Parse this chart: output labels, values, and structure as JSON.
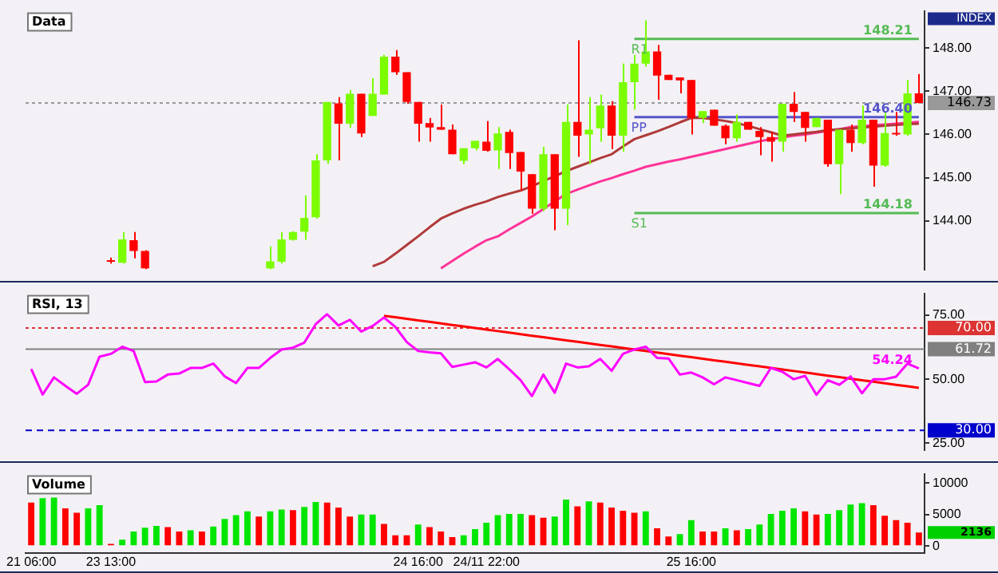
{
  "chart_data": [
    {
      "type": "candlestick",
      "title": "Data",
      "annotations": [
        "INDEX"
      ],
      "tick_labels": "y",
      "categories": [
        null,
        null,
        null,
        null,
        null,
        null,
        null,
        null,
        null,
        null,
        null,
        null,
        null,
        null,
        null,
        null,
        null,
        null,
        null,
        null,
        null,
        null,
        null,
        null,
        null,
        null,
        null,
        null,
        null,
        null,
        null,
        null,
        null,
        null,
        null,
        null,
        null,
        null,
        null,
        null,
        null,
        null,
        null,
        null,
        null,
        null,
        null,
        null,
        null,
        null,
        null,
        null,
        null,
        null,
        null,
        null,
        null,
        null,
        null,
        null,
        null,
        null,
        null,
        null,
        null,
        null,
        null,
        null,
        null,
        null,
        null,
        null,
        null,
        null,
        null,
        null,
        null,
        null,
        null
      ],
      "ohlc": [
        null,
        null,
        null,
        null,
        null,
        null,
        null,
        [
          143.07,
          143.15,
          143.01,
          143.05
        ],
        [
          143.03,
          143.74,
          143.01,
          143.57
        ],
        [
          143.55,
          143.74,
          143.13,
          143.3
        ],
        [
          143.3,
          143.32,
          142.88,
          142.9
        ],
        null,
        null,
        null,
        null,
        null,
        null,
        null,
        null,
        null,
        null,
        [
          142.9,
          143.41,
          142.88,
          143.06
        ],
        [
          143.05,
          143.74,
          143.01,
          143.57
        ],
        [
          143.56,
          143.76,
          143.54,
          143.74
        ],
        [
          143.75,
          144.59,
          143.56,
          144.07
        ],
        [
          144.08,
          145.54,
          144.05,
          145.4
        ],
        [
          145.4,
          146.75,
          145.32,
          146.75
        ],
        [
          146.72,
          146.86,
          145.4,
          146.25
        ],
        [
          146.25,
          147.03,
          146.15,
          146.94
        ],
        [
          146.94,
          146.94,
          145.94,
          146.02
        ],
        [
          146.43,
          147.3,
          146.43,
          146.94
        ],
        [
          146.92,
          147.84,
          146.92,
          147.8
        ],
        [
          147.8,
          147.95,
          147.38,
          147.44
        ],
        [
          147.44,
          147.44,
          146.71,
          146.75
        ],
        [
          146.75,
          146.75,
          145.83,
          146.25
        ],
        [
          146.26,
          146.38,
          145.83,
          146.16
        ],
        [
          146.17,
          146.69,
          146.11,
          146.11
        ],
        [
          146.11,
          146.23,
          145.54,
          145.54
        ],
        [
          145.39,
          145.68,
          145.31,
          145.68
        ],
        [
          145.68,
          145.85,
          145.63,
          145.85
        ],
        [
          145.83,
          146.31,
          145.6,
          145.62
        ],
        [
          145.63,
          146.17,
          145.2,
          146.02
        ],
        [
          146.06,
          146.11,
          145.2,
          145.57
        ],
        [
          145.59,
          145.59,
          144.7,
          145.14
        ],
        [
          145.08,
          145.08,
          144.16,
          144.28
        ],
        [
          144.28,
          145.71,
          144.22,
          145.54
        ],
        [
          145.54,
          145.54,
          143.78,
          144.28
        ],
        [
          144.28,
          146.69,
          143.9,
          146.29
        ],
        [
          146.29,
          148.18,
          145.48,
          145.97
        ],
        [
          146.0,
          146.86,
          145.31,
          146.11
        ],
        [
          146.14,
          146.92,
          145.83,
          146.67
        ],
        [
          146.67,
          146.77,
          145.66,
          145.97
        ],
        [
          145.97,
          147.64,
          145.6,
          147.21
        ],
        [
          147.21,
          147.84,
          146.57,
          147.64
        ],
        [
          147.64,
          148.64,
          147.57,
          147.92
        ],
        [
          147.92,
          148.07,
          146.8,
          147.36
        ],
        [
          147.38,
          147.38,
          147.26,
          147.26
        ],
        [
          147.32,
          147.32,
          146.95,
          147.25
        ],
        [
          147.26,
          147.26,
          146.0,
          146.38
        ],
        [
          146.38,
          146.54,
          146.26,
          146.54
        ],
        [
          146.57,
          146.57,
          146.2,
          146.2
        ],
        [
          146.2,
          146.23,
          145.77,
          145.91
        ],
        [
          145.91,
          146.46,
          145.83,
          146.29
        ],
        [
          146.29,
          146.29,
          146.11,
          146.11
        ],
        [
          146.08,
          146.17,
          145.52,
          145.94
        ],
        [
          145.94,
          146.06,
          145.37,
          145.83
        ],
        [
          145.83,
          146.71,
          145.6,
          146.71
        ],
        [
          146.71,
          146.98,
          146.29,
          146.52
        ],
        [
          146.52,
          146.52,
          145.83,
          146.15
        ],
        [
          146.17,
          146.38,
          146.17,
          146.38
        ],
        [
          146.34,
          146.34,
          145.25,
          145.31
        ],
        [
          145.31,
          146.11,
          144.62,
          146.11
        ],
        [
          146.11,
          146.23,
          145.6,
          145.8
        ],
        [
          145.8,
          146.67,
          145.77,
          146.34
        ],
        [
          146.34,
          146.34,
          144.79,
          145.28
        ],
        [
          145.28,
          146.52,
          145.25,
          146.03
        ],
        [
          146.02,
          146.52,
          145.97,
          146.0
        ],
        [
          146.0,
          147.26,
          145.97,
          146.95
        ],
        [
          146.95,
          147.4,
          146.72,
          146.73
        ]
      ],
      "colors": [
        null,
        null,
        null,
        null,
        null,
        null,
        null,
        "#ff0000",
        "#7cfc00",
        "#ff0000",
        "#ff0000",
        null,
        null,
        null,
        null,
        null,
        null,
        null,
        null,
        null,
        null,
        "#7cfc00",
        "#7cfc00",
        "#7cfc00",
        "#7cfc00",
        "#7cfc00",
        "#7cfc00",
        "#ff0000",
        "#7cfc00",
        "#ff0000",
        "#7cfc00",
        "#7cfc00",
        "#ff0000",
        "#ff0000",
        "#ff0000",
        "#ff0000",
        "#ff0000",
        "#ff0000",
        "#7cfc00",
        "#7cfc00",
        "#ff0000",
        "#7cfc00",
        "#ff0000",
        "#ff0000",
        "#ff0000",
        "#7cfc00",
        "#ff0000",
        "#7cfc00",
        "#ff0000",
        "#7cfc00",
        "#7cfc00",
        "#ff0000",
        "#7cfc00",
        "#7cfc00",
        "#7cfc00",
        "#ff0000",
        "#ff0000",
        "#ff0000",
        "#ff0000",
        "#7cfc00",
        "#ff0000",
        "#ff0000",
        "#7cfc00",
        "#ff0000",
        "#ff0000",
        "#ff0000",
        "#7cfc00",
        "#ff0000",
        "#ff0000",
        "#7cfc00",
        "#ff0000",
        "#7cfc00",
        "#ff0000",
        "#7cfc00",
        "#ff0000",
        "#7cfc00",
        "#ff0000",
        "#7cfc00",
        "#ff0000"
      ],
      "series": [
        {
          "type": "line",
          "color": "#b03a3a",
          "values": [
            null,
            null,
            null,
            null,
            null,
            null,
            null,
            null,
            null,
            null,
            null,
            null,
            null,
            null,
            null,
            null,
            null,
            null,
            null,
            null,
            null,
            null,
            null,
            null,
            null,
            null,
            null,
            null,
            null,
            null,
            142.95,
            143.05,
            143.24,
            143.44,
            143.64,
            143.85,
            144.05,
            144.17,
            144.28,
            144.37,
            144.45,
            144.55,
            144.63,
            144.7,
            144.8,
            144.92,
            145.03,
            145.15,
            145.25,
            145.35,
            145.45,
            145.54,
            145.72,
            145.89,
            145.98,
            146.07,
            146.17,
            146.28,
            146.38,
            146.38,
            146.35,
            146.31,
            146.26,
            146.2,
            146.12,
            146.05,
            145.97,
            146.0,
            146.03,
            146.06,
            146.1,
            146.12,
            146.14,
            146.16,
            146.18,
            146.2,
            146.22,
            146.24,
            146.25
          ]
        },
        {
          "type": "line",
          "color": "#ff3399",
          "values": [
            null,
            null,
            null,
            null,
            null,
            null,
            null,
            null,
            null,
            null,
            null,
            null,
            null,
            null,
            null,
            null,
            null,
            null,
            null,
            null,
            null,
            null,
            null,
            null,
            null,
            null,
            null,
            null,
            null,
            null,
            null,
            null,
            null,
            null,
            null,
            null,
            142.9,
            143.07,
            143.24,
            143.4,
            143.55,
            143.64,
            143.8,
            143.95,
            144.1,
            144.27,
            144.45,
            144.62,
            144.72,
            144.82,
            144.91,
            144.99,
            145.08,
            145.16,
            145.25,
            145.31,
            145.37,
            145.42,
            145.48,
            145.54,
            145.6,
            145.66,
            145.72,
            145.78,
            145.84,
            145.89,
            145.93,
            145.97,
            146.0,
            146.04,
            146.08,
            146.12,
            146.17,
            146.19,
            146.21,
            146.23,
            146.25,
            146.27,
            146.29
          ]
        },
        {
          "type": "line",
          "name": "R1",
          "color": "#55bb55",
          "values": [
            null,
            null,
            null,
            null,
            null,
            null,
            null,
            null,
            null,
            null,
            null,
            null,
            null,
            null,
            null,
            null,
            null,
            null,
            null,
            null,
            null,
            null,
            null,
            null,
            null,
            null,
            null,
            null,
            null,
            null,
            null,
            null,
            null,
            null,
            null,
            null,
            null,
            null,
            null,
            null,
            null,
            null,
            null,
            null,
            null,
            null,
            null,
            null,
            null,
            null,
            null,
            null,
            null,
            148.21,
            148.21,
            148.21,
            148.21,
            148.21,
            148.21,
            148.21,
            148.21,
            148.21,
            148.21,
            148.21,
            148.21,
            148.21,
            148.21,
            148.21,
            148.21,
            148.21,
            148.21,
            148.21,
            148.21,
            148.21,
            148.21,
            148.21,
            148.21,
            148.21,
            148.21
          ],
          "value_labels": [
            null,
            null,
            null,
            null,
            null,
            null,
            null,
            null,
            null,
            null,
            null,
            null,
            null,
            null,
            null,
            null,
            null,
            null,
            null,
            null,
            null,
            null,
            null,
            null,
            null,
            null,
            null,
            null,
            null,
            null,
            null,
            null,
            null,
            null,
            null,
            null,
            null,
            null,
            null,
            null,
            null,
            null,
            null,
            null,
            null,
            null,
            null,
            null,
            null,
            null,
            null,
            null,
            null,
            null,
            null,
            null,
            null,
            null,
            null,
            null,
            null,
            null,
            null,
            null,
            null,
            null,
            null,
            null,
            null,
            null,
            null,
            null,
            null,
            null,
            null,
            null,
            null,
            null,
            "148.21"
          ]
        },
        {
          "type": "line",
          "name": "PP",
          "color": "#5555cc",
          "values": [
            null,
            null,
            null,
            null,
            null,
            null,
            null,
            null,
            null,
            null,
            null,
            null,
            null,
            null,
            null,
            null,
            null,
            null,
            null,
            null,
            null,
            null,
            null,
            null,
            null,
            null,
            null,
            null,
            null,
            null,
            null,
            null,
            null,
            null,
            null,
            null,
            null,
            null,
            null,
            null,
            null,
            null,
            null,
            null,
            null,
            null,
            null,
            null,
            null,
            null,
            null,
            null,
            null,
            146.4,
            146.4,
            146.4,
            146.4,
            146.4,
            146.4,
            146.4,
            146.4,
            146.4,
            146.4,
            146.4,
            146.4,
            146.4,
            146.4,
            146.4,
            146.4,
            146.4,
            146.4,
            146.4,
            146.4,
            146.4,
            146.4,
            146.4,
            146.4,
            146.4,
            146.4
          ],
          "value_labels": [
            null,
            null,
            null,
            null,
            null,
            null,
            null,
            null,
            null,
            null,
            null,
            null,
            null,
            null,
            null,
            null,
            null,
            null,
            null,
            null,
            null,
            null,
            null,
            null,
            null,
            null,
            null,
            null,
            null,
            null,
            null,
            null,
            null,
            null,
            null,
            null,
            null,
            null,
            null,
            null,
            null,
            null,
            null,
            null,
            null,
            null,
            null,
            null,
            null,
            null,
            null,
            null,
            null,
            null,
            null,
            null,
            null,
            null,
            null,
            null,
            null,
            null,
            null,
            null,
            null,
            null,
            null,
            null,
            null,
            null,
            null,
            null,
            null,
            null,
            null,
            null,
            null,
            null,
            "146.40"
          ]
        },
        {
          "type": "line",
          "name": "S1",
          "color": "#55bb55",
          "values": [
            null,
            null,
            null,
            null,
            null,
            null,
            null,
            null,
            null,
            null,
            null,
            null,
            null,
            null,
            null,
            null,
            null,
            null,
            null,
            null,
            null,
            null,
            null,
            null,
            null,
            null,
            null,
            null,
            null,
            null,
            null,
            null,
            null,
            null,
            null,
            null,
            null,
            null,
            null,
            null,
            null,
            null,
            null,
            null,
            null,
            null,
            null,
            null,
            null,
            null,
            null,
            null,
            null,
            144.18,
            144.18,
            144.18,
            144.18,
            144.18,
            144.18,
            144.18,
            144.18,
            144.18,
            144.18,
            144.18,
            144.18,
            144.18,
            144.18,
            144.18,
            144.18,
            144.18,
            144.18,
            144.18,
            144.18,
            144.18,
            144.18,
            144.18,
            144.18,
            144.18,
            144.18
          ],
          "value_labels": [
            null,
            null,
            null,
            null,
            null,
            null,
            null,
            null,
            null,
            null,
            null,
            null,
            null,
            null,
            null,
            null,
            null,
            null,
            null,
            null,
            null,
            null,
            null,
            null,
            null,
            null,
            null,
            null,
            null,
            null,
            null,
            null,
            null,
            null,
            null,
            null,
            null,
            null,
            null,
            null,
            null,
            null,
            null,
            null,
            null,
            null,
            null,
            null,
            null,
            null,
            null,
            null,
            null,
            null,
            null,
            null,
            null,
            null,
            null,
            null,
            null,
            null,
            null,
            null,
            null,
            null,
            null,
            null,
            null,
            null,
            null,
            null,
            null,
            null,
            null,
            null,
            null,
            null,
            "144.18"
          ]
        }
      ],
      "ylim": [
        142.86,
        148.86
      ],
      "yticks": [
        {
          "value": 144,
          "label": "144.00"
        },
        {
          "value": 145,
          "label": "145.00"
        },
        {
          "value": 146,
          "label": "146.00"
        },
        {
          "value": 147,
          "label": "147.00"
        },
        {
          "value": 148,
          "label": "148.00"
        }
      ],
      "ref_lines": [
        {
          "axis": "y",
          "value": 146.73,
          "label": "146.73",
          "color": "#999999",
          "line_style": "dotted"
        }
      ]
    },
    {
      "type": "line",
      "title": "RSI, 13",
      "tick_labels": "y",
      "categories": [
        null,
        null,
        null,
        null,
        null,
        null,
        null,
        null,
        null,
        null,
        null,
        null,
        null,
        null,
        null,
        null,
        null,
        null,
        null,
        null,
        null,
        null,
        null,
        null,
        null,
        null,
        null,
        null,
        null,
        null,
        null,
        null,
        null,
        null,
        null,
        null,
        null,
        null,
        null,
        null,
        null,
        null,
        null,
        null,
        null,
        null,
        null,
        null,
        null,
        null,
        null,
        null,
        null,
        null,
        null,
        null,
        null,
        null,
        null,
        null,
        null,
        null,
        null,
        null,
        null,
        null,
        null,
        null,
        null,
        null,
        null,
        null,
        null,
        null,
        null,
        null,
        null,
        null,
        null
      ],
      "series": [
        {
          "type": "line",
          "color": "#ff00ff",
          "values": [
            54,
            44,
            50.7,
            47.4,
            44.3,
            47.8,
            58.8,
            59.9,
            62.7,
            61,
            48.9,
            49.1,
            51.8,
            52.2,
            54.4,
            54.4,
            56.1,
            51.1,
            48.5,
            54.4,
            54.4,
            58.3,
            61.6,
            62.3,
            64.3,
            71.5,
            75.4,
            71,
            73.2,
            68.6,
            70.8,
            74.1,
            70.4,
            64.5,
            61,
            60.5,
            60.1,
            54.8,
            55.7,
            56.6,
            54.6,
            57.9,
            53.9,
            49.6,
            43.4,
            51.8,
            44.7,
            56.1,
            54.6,
            55,
            57.9,
            53.3,
            59.9,
            61.6,
            62.7,
            58.3,
            58.1,
            51.8,
            52.6,
            50.7,
            48,
            50.7,
            49.6,
            48.5,
            47.4,
            54.4,
            52.9,
            50,
            51.3,
            43.9,
            49.6,
            47.8,
            51.1,
            44.5,
            50,
            50,
            51,
            56.1,
            54.24
          ],
          "value_labels": [
            null,
            null,
            null,
            null,
            null,
            null,
            null,
            null,
            null,
            null,
            null,
            null,
            null,
            null,
            null,
            null,
            null,
            null,
            null,
            null,
            null,
            null,
            null,
            null,
            null,
            null,
            null,
            null,
            null,
            null,
            null,
            null,
            null,
            null,
            null,
            null,
            null,
            null,
            null,
            null,
            null,
            null,
            null,
            null,
            null,
            null,
            null,
            null,
            null,
            null,
            null,
            null,
            null,
            null,
            null,
            null,
            null,
            null,
            null,
            null,
            null,
            null,
            null,
            null,
            null,
            null,
            null,
            null,
            null,
            null,
            null,
            null,
            null,
            null,
            null,
            null,
            null,
            null,
            "54.24"
          ]
        },
        {
          "type": "line",
          "color": "#ff0000",
          "values": [
            null,
            null,
            null,
            null,
            null,
            null,
            null,
            null,
            null,
            null,
            null,
            null,
            null,
            null,
            null,
            null,
            null,
            null,
            null,
            null,
            null,
            null,
            null,
            null,
            null,
            null,
            null,
            null,
            null,
            null,
            null,
            74.8,
            74.2,
            73.6,
            73.0,
            72.4,
            71.8,
            71.2,
            70.6,
            70.0,
            69.4,
            68.8,
            68.2,
            67.6,
            67.0,
            66.4,
            65.8,
            65.2,
            64.6,
            64.0,
            63.4,
            62.8,
            62.2,
            61.6,
            61.0,
            60.4,
            59.8,
            59.2,
            58.6,
            58.0,
            57.4,
            56.8,
            56.2,
            55.6,
            55.0,
            54.4,
            53.8,
            53.2,
            52.6,
            52.0,
            51.4,
            50.8,
            50.2,
            49.6,
            49.0,
            48.4,
            47.8,
            47.2,
            46.6
          ]
        }
      ],
      "ylim": [
        22.15,
        83.55
      ],
      "yticks": [
        {
          "value": 25,
          "label": "25.00"
        },
        {
          "value": 50,
          "label": "50.00"
        },
        {
          "value": 75,
          "label": "75.00"
        }
      ],
      "ref_lines": [
        {
          "axis": "y",
          "value": 70,
          "label": "70.00",
          "color": "#dd3333",
          "line_style": "dotted"
        },
        {
          "axis": "y",
          "value": 61.72,
          "label": "61.72",
          "color": "#808080",
          "line_style": "solid"
        },
        {
          "axis": "y",
          "value": 30,
          "label": "30.00",
          "color": "#0000cc",
          "line_style": "dashed"
        }
      ]
    },
    {
      "type": "bar",
      "title": "Volume",
      "categories": [
        "21 06:00",
        null,
        null,
        null,
        null,
        null,
        null,
        "23 13:00",
        null,
        null,
        null,
        null,
        null,
        null,
        null,
        null,
        null,
        null,
        null,
        null,
        null,
        null,
        null,
        null,
        null,
        null,
        null,
        null,
        null,
        null,
        null,
        null,
        null,
        null,
        "24 16:00",
        null,
        null,
        null,
        null,
        null,
        "24/11 22:00",
        null,
        null,
        null,
        null,
        null,
        null,
        null,
        null,
        null,
        null,
        null,
        null,
        null,
        null,
        null,
        null,
        null,
        "25 16:00",
        null,
        null,
        null,
        null,
        null,
        null,
        null,
        null,
        null,
        null,
        null,
        null,
        null,
        null,
        null,
        null,
        null,
        null,
        null,
        null
      ],
      "values": [
        6900,
        7600,
        7700,
        6000,
        5300,
        6000,
        6500,
        350,
        1000,
        2300,
        2900,
        3200,
        3000,
        2300,
        2500,
        2300,
        3100,
        4300,
        4900,
        5500,
        4700,
        5500,
        5800,
        5700,
        6200,
        7000,
        6900,
        6100,
        4700,
        5000,
        5000,
        3500,
        1700,
        1700,
        3400,
        3000,
        2300,
        1400,
        1700,
        2700,
        3700,
        4900,
        5100,
        5100,
        4900,
        4500,
        4700,
        7400,
        6300,
        7100,
        6900,
        6100,
        5600,
        5300,
        5500,
        2800,
        1500,
        1900,
        4100,
        2300,
        2300,
        2800,
        2500,
        2700,
        3400,
        5100,
        5600,
        6000,
        5500,
        5000,
        5100,
        5700,
        6600,
        6800,
        6500,
        4800,
        4100,
        3700,
        2136
      ],
      "colors": [
        "#ff0000",
        "#00e600",
        "#00e600",
        "#ff0000",
        "#ff0000",
        "#00e600",
        "#00e600",
        "#ff0000",
        "#00e600",
        "#00e600",
        "#00e600",
        "#00e600",
        "#ff0000",
        "#ff0000",
        "#00e600",
        "#ff0000",
        "#00e600",
        "#00e600",
        "#00e600",
        "#00e600",
        "#ff0000",
        "#00e600",
        "#00e600",
        "#ff0000",
        "#00e600",
        "#00e600",
        "#ff0000",
        "#ff0000",
        "#ff0000",
        "#00e600",
        "#00e600",
        "#ff0000",
        "#ff0000",
        "#ff0000",
        "#00e600",
        "#ff0000",
        "#ff0000",
        "#ff0000",
        "#00e600",
        "#00e600",
        "#00e600",
        "#00e600",
        "#00e600",
        "#00e600",
        "#ff0000",
        "#ff0000",
        "#00e600",
        "#00e600",
        "#ff0000",
        "#00e600",
        "#ff0000",
        "#ff0000",
        "#ff0000",
        "#ff0000",
        "#00e600",
        "#ff0000",
        "#ff0000",
        "#00e600",
        "#00e600",
        "#ff0000",
        "#ff0000",
        "#00e600",
        "#ff0000",
        "#00e600",
        "#00e600",
        "#00e600",
        "#00e600",
        "#00e600",
        "#ff0000",
        "#ff0000",
        "#00e600",
        "#00e600",
        "#00e600",
        "#00e600",
        "#ff0000",
        "#ff0000",
        "#ff0000",
        "#ff0000",
        "#ff0000"
      ],
      "annotations": [
        "2136"
      ],
      "ylim": [
        -1100,
        11500
      ],
      "yticks": [
        0,
        5000,
        10000
      ]
    }
  ]
}
